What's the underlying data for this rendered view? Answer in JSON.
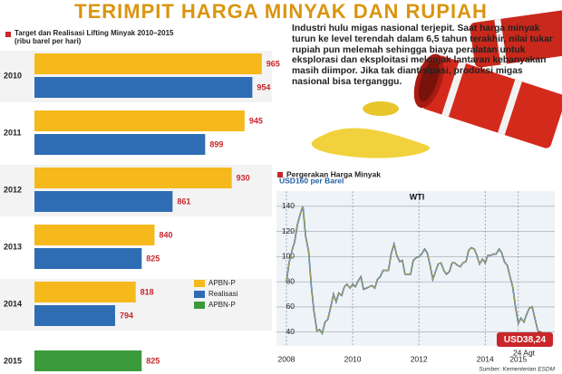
{
  "title": "TERIMPIT HARGA MINYAK DAN RUPIAH",
  "text": "Industri hulu migas nasional terjepit. Saat harga minyak turun ke level terendah dalam 6,5 tahun terakhir, nilai tukar rupiah pun melemah sehingga biaya peralatan untuk eksplorasi dan eksploitasi melonjak lantaran kebanyakan masih diimpor. Jika tak diantisipasi, produksi migas nasional bisa terganggu.",
  "source": "Sumber: Kementerian ESDM",
  "chart_data": [
    {
      "type": "hbar",
      "title": "Target dan Realisasi Lifting Minyak 2010–2015",
      "subtitle": "(ribu barel per hari)",
      "categories": [
        "2010",
        "2011",
        "2012",
        "2013",
        "2014",
        "2015"
      ],
      "series": [
        {
          "name": "APBN-P",
          "color": "#f6b91c",
          "values": [
            965,
            945,
            930,
            840,
            818,
            null
          ]
        },
        {
          "name": "Realisasi",
          "color": "#2e6db4",
          "values": [
            954,
            899,
            861,
            825,
            794,
            null
          ]
        },
        {
          "name": "APBN-P",
          "color": "#3a9a3c",
          "values": [
            null,
            null,
            null,
            null,
            null,
            825
          ]
        }
      ],
      "xlim": [
        700,
        980
      ],
      "legend": "lower right"
    },
    {
      "type": "line",
      "title": "Pergerakan Harga Minyak",
      "x": [
        2008.0,
        2008.08,
        2008.17,
        2008.25,
        2008.33,
        2008.42,
        2008.5,
        2008.58,
        2008.67,
        2008.75,
        2008.83,
        2008.92,
        2009.0,
        2009.08,
        2009.17,
        2009.25,
        2009.33,
        2009.42,
        2009.5,
        2009.58,
        2009.67,
        2009.75,
        2009.83,
        2009.92,
        2010.0,
        2010.08,
        2010.17,
        2010.25,
        2010.33,
        2010.42,
        2010.5,
        2010.58,
        2010.67,
        2010.75,
        2010.83,
        2010.92,
        2011.0,
        2011.08,
        2011.17,
        2011.25,
        2011.33,
        2011.42,
        2011.5,
        2011.58,
        2011.67,
        2011.75,
        2011.83,
        2011.92,
        2012.0,
        2012.08,
        2012.17,
        2012.25,
        2012.33,
        2012.42,
        2012.5,
        2012.58,
        2012.67,
        2012.75,
        2012.83,
        2012.92,
        2013.0,
        2013.08,
        2013.17,
        2013.25,
        2013.33,
        2013.42,
        2013.5,
        2013.58,
        2013.67,
        2013.75,
        2013.83,
        2013.92,
        2014.0,
        2014.08,
        2014.17,
        2014.25,
        2014.33,
        2014.42,
        2014.5,
        2014.58,
        2014.67,
        2014.75,
        2014.83,
        2014.92,
        2015.0,
        2015.08,
        2015.17,
        2015.25,
        2015.33,
        2015.42,
        2015.5,
        2015.58,
        2015.65
      ],
      "series": [
        {
          "name": "WTI",
          "color": "#1f5fa6",
          "values": [
            80,
            95,
            105,
            112,
            125,
            134,
            140,
            116,
            104,
            77,
            57,
            41,
            42,
            39,
            48,
            50,
            59,
            70,
            64,
            71,
            69,
            76,
            78,
            75,
            78,
            76,
            81,
            84,
            74,
            75,
            76,
            77,
            75,
            82,
            84,
            89,
            89,
            89,
            103,
            110,
            101,
            96,
            97,
            86,
            86,
            86,
            97,
            99,
            100,
            102,
            106,
            103,
            94,
            82,
            88,
            94,
            95,
            89,
            86,
            88,
            95,
            95,
            93,
            92,
            95,
            96,
            105,
            107,
            106,
            101,
            94,
            98,
            95,
            101,
            101,
            102,
            102,
            106,
            103,
            96,
            93,
            84,
            76,
            59,
            47,
            51,
            48,
            54,
            59,
            60,
            51,
            42,
            38.24
          ]
        }
      ],
      "xlim": [
        2007.7,
        2016.1
      ],
      "xticks": [
        2008,
        2010,
        2012,
        2014,
        2015
      ],
      "ylim": [
        29,
        160
      ],
      "yticks": [
        40,
        60,
        80,
        100,
        120,
        140,
        {
          "value": 160,
          "label": "USD160 per Barel"
        }
      ],
      "grid": true,
      "annotations": [
        "USD38,24",
        "24 Agt"
      ]
    }
  ]
}
